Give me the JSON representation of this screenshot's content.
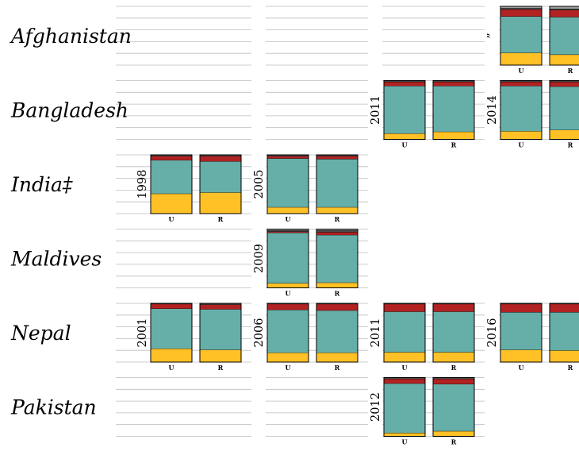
{
  "chart_data": {
    "type": "bar",
    "stacked": true,
    "grid": true,
    "ylim": [
      0,
      1
    ],
    "segment_colors": {
      "bottom": "#FFC125",
      "middle": "#66AFA9",
      "upper": "#B22222",
      "upper2": "#4B4B4B",
      "top": "#9E9E9E"
    },
    "panels": [
      {
        "country": "Afghanistan",
        "surveys": [
          {
            "slot": 3,
            "year": "”",
            "bars": [
              {
                "category": "U",
                "values": {
                  "bottom": 0.21,
                  "middle": 0.62,
                  "upper": 0.12,
                  "upper2": 0.02,
                  "top": 0.03
                }
              },
              {
                "category": "R",
                "values": {
                  "bottom": 0.18,
                  "middle": 0.64,
                  "upper": 0.12,
                  "upper2": 0.02,
                  "top": 0.04
                }
              }
            ]
          }
        ]
      },
      {
        "country": "Bangladesh",
        "surveys": [
          {
            "slot": 2,
            "year": "2011",
            "bars": [
              {
                "category": "U",
                "values": {
                  "bottom": 0.1,
                  "middle": 0.81,
                  "upper": 0.07,
                  "upper2": 0.01,
                  "top": 0.01
                }
              },
              {
                "category": "R",
                "values": {
                  "bottom": 0.13,
                  "middle": 0.78,
                  "upper": 0.07,
                  "upper2": 0.01,
                  "top": 0.01
                }
              }
            ]
          },
          {
            "slot": 3,
            "year": "2014",
            "bars": [
              {
                "category": "U",
                "values": {
                  "bottom": 0.14,
                  "middle": 0.77,
                  "upper": 0.07,
                  "upper2": 0.01,
                  "top": 0.01
                }
              },
              {
                "category": "R",
                "values": {
                  "bottom": 0.16,
                  "middle": 0.74,
                  "upper": 0.08,
                  "upper2": 0.01,
                  "top": 0.01
                }
              }
            ]
          }
        ]
      },
      {
        "country": "India‡",
        "surveys": [
          {
            "slot": 0,
            "year": "1998",
            "bars": [
              {
                "category": "U",
                "values": {
                  "bottom": 0.34,
                  "middle": 0.57,
                  "upper": 0.07,
                  "upper2": 0.02,
                  "top": 0.0
                }
              },
              {
                "category": "R",
                "values": {
                  "bottom": 0.36,
                  "middle": 0.53,
                  "upper": 0.09,
                  "upper2": 0.02,
                  "top": 0.0
                }
              }
            ]
          },
          {
            "slot": 1,
            "year": "2005",
            "bars": [
              {
                "category": "U",
                "values": {
                  "bottom": 0.11,
                  "middle": 0.83,
                  "upper": 0.04,
                  "upper2": 0.02,
                  "top": 0.0
                }
              },
              {
                "category": "R",
                "values": {
                  "bottom": 0.11,
                  "middle": 0.82,
                  "upper": 0.05,
                  "upper2": 0.02,
                  "top": 0.0
                }
              }
            ]
          }
        ]
      },
      {
        "country": "Maldives",
        "surveys": [
          {
            "slot": 1,
            "year": "2009",
            "bars": [
              {
                "category": "U",
                "values": {
                  "bottom": 0.08,
                  "middle": 0.86,
                  "upper": 0.02,
                  "upper2": 0.02,
                  "top": 0.02
                }
              },
              {
                "category": "R",
                "values": {
                  "bottom": 0.09,
                  "middle": 0.81,
                  "upper": 0.05,
                  "upper2": 0.03,
                  "top": 0.02
                }
              }
            ]
          }
        ]
      },
      {
        "country": "Nepal",
        "surveys": [
          {
            "slot": 0,
            "year": "2001",
            "bars": [
              {
                "category": "U",
                "values": {
                  "bottom": 0.23,
                  "middle": 0.68,
                  "upper": 0.08,
                  "upper2": 0.01,
                  "top": 0.0
                }
              },
              {
                "category": "R",
                "values": {
                  "bottom": 0.21,
                  "middle": 0.69,
                  "upper": 0.08,
                  "upper2": 0.02,
                  "top": 0.0
                }
              }
            ]
          },
          {
            "slot": 1,
            "year": "2006",
            "bars": [
              {
                "category": "U",
                "values": {
                  "bottom": 0.16,
                  "middle": 0.73,
                  "upper": 0.1,
                  "upper2": 0.01,
                  "top": 0.0
                }
              },
              {
                "category": "R",
                "values": {
                  "bottom": 0.16,
                  "middle": 0.72,
                  "upper": 0.11,
                  "upper2": 0.01,
                  "top": 0.0
                }
              }
            ]
          },
          {
            "slot": 2,
            "year": "2011",
            "bars": [
              {
                "category": "U",
                "values": {
                  "bottom": 0.17,
                  "middle": 0.69,
                  "upper": 0.13,
                  "upper2": 0.01,
                  "top": 0.0
                }
              },
              {
                "category": "R",
                "values": {
                  "bottom": 0.17,
                  "middle": 0.69,
                  "upper": 0.13,
                  "upper2": 0.01,
                  "top": 0.0
                }
              }
            ]
          },
          {
            "slot": 3,
            "year": "2016",
            "bars": [
              {
                "category": "U",
                "values": {
                  "bottom": 0.21,
                  "middle": 0.64,
                  "upper": 0.14,
                  "upper2": 0.01,
                  "top": 0.0
                }
              },
              {
                "category": "R",
                "values": {
                  "bottom": 0.2,
                  "middle": 0.65,
                  "upper": 0.14,
                  "upper2": 0.01,
                  "top": 0.0
                }
              }
            ]
          }
        ]
      },
      {
        "country": "Pakistan",
        "surveys": [
          {
            "slot": 2,
            "year": "2012",
            "bars": [
              {
                "category": "U",
                "values": {
                  "bottom": 0.06,
                  "middle": 0.84,
                  "upper": 0.08,
                  "upper2": 0.02,
                  "top": 0.0
                }
              },
              {
                "category": "R",
                "values": {
                  "bottom": 0.09,
                  "middle": 0.8,
                  "upper": 0.09,
                  "upper2": 0.02,
                  "top": 0.0
                }
              }
            ]
          }
        ]
      }
    ]
  }
}
